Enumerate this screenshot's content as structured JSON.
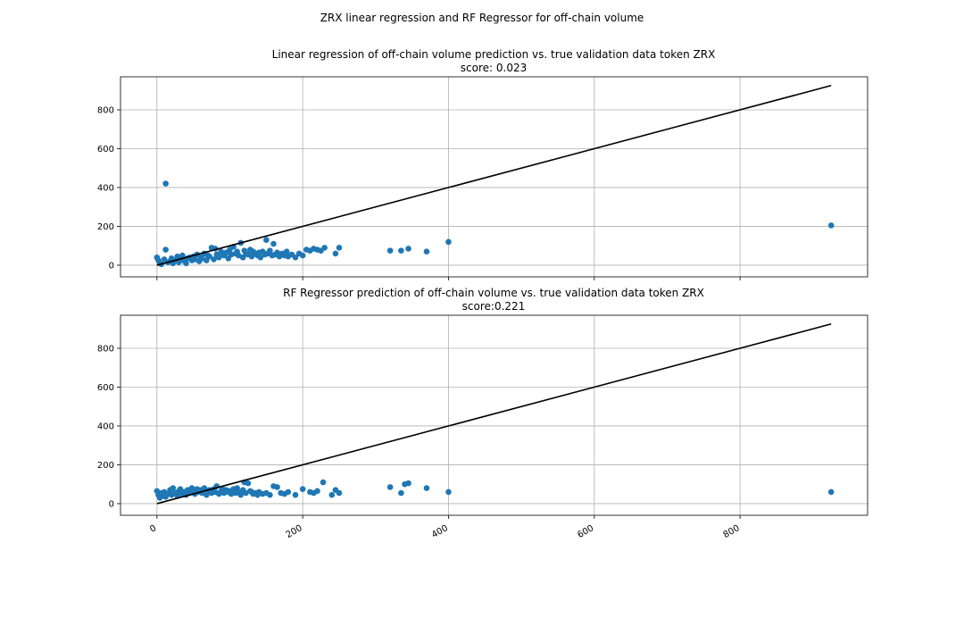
{
  "figure": {
    "suptitle": "ZRX linear regression and RF Regressor for off-chain volume"
  },
  "colors": {
    "points": "#1f77b4",
    "reference_line": "#000000",
    "grid": "#b0b0b0"
  },
  "chart_data": [
    {
      "type": "scatter",
      "title": "Linear regression of off-chain volume prediction vs. true validation data token ZRX",
      "subtitle": "score: 0.023",
      "xlim": [
        -50,
        975
      ],
      "ylim": [
        -60,
        970
      ],
      "xticks": [
        0,
        200,
        400,
        600,
        800
      ],
      "yticks": [
        0,
        200,
        400,
        600,
        800
      ],
      "xtick_labels_shown": false,
      "grid": true,
      "reference_line": {
        "x": [
          0,
          925
        ],
        "y": [
          0,
          925
        ]
      },
      "points": {
        "x": [
          0,
          2,
          4,
          6,
          10,
          12,
          15,
          18,
          20,
          22,
          25,
          28,
          30,
          32,
          35,
          38,
          40,
          42,
          45,
          48,
          50,
          52,
          55,
          58,
          60,
          62,
          65,
          68,
          70,
          72,
          75,
          78,
          80,
          82,
          85,
          88,
          90,
          92,
          95,
          98,
          100,
          102,
          105,
          108,
          110,
          112,
          115,
          118,
          120,
          122,
          125,
          128,
          130,
          132,
          135,
          138,
          140,
          142,
          145,
          148,
          150,
          152,
          155,
          158,
          160,
          162,
          165,
          168,
          170,
          172,
          175,
          178,
          180,
          185,
          190,
          195,
          200,
          205,
          210,
          215,
          220,
          225,
          230,
          245,
          250,
          320,
          335,
          345,
          370,
          400,
          925,
          12
        ],
        "y": [
          40,
          25,
          10,
          5,
          30,
          80,
          15,
          20,
          35,
          10,
          25,
          45,
          15,
          30,
          50,
          20,
          10,
          35,
          40,
          25,
          45,
          30,
          55,
          20,
          40,
          35,
          60,
          25,
          50,
          45,
          90,
          30,
          85,
          55,
          40,
          70,
          60,
          50,
          65,
          35,
          80,
          55,
          95,
          60,
          70,
          50,
          115,
          40,
          75,
          60,
          55,
          80,
          45,
          70,
          60,
          50,
          65,
          40,
          70,
          55,
          130,
          60,
          75,
          50,
          110,
          55,
          65,
          45,
          55,
          60,
          50,
          70,
          45,
          55,
          40,
          60,
          50,
          80,
          75,
          85,
          80,
          75,
          90,
          60,
          90,
          75,
          75,
          85,
          70,
          120,
          205,
          420
        ]
      }
    },
    {
      "type": "scatter",
      "title": "RF Regressor prediction of off-chain volume vs. true validation data token ZRX",
      "subtitle": "score:0.221",
      "xlim": [
        -50,
        975
      ],
      "ylim": [
        -60,
        970
      ],
      "xticks": [
        0,
        200,
        400,
        600,
        800
      ],
      "yticks": [
        0,
        200,
        400,
        600,
        800
      ],
      "xtick_labels": [
        "0",
        "200",
        "400",
        "600",
        "800"
      ],
      "grid": true,
      "reference_line": {
        "x": [
          0,
          925
        ],
        "y": [
          0,
          925
        ]
      },
      "points": {
        "x": [
          0,
          2,
          4,
          6,
          8,
          10,
          12,
          15,
          18,
          20,
          22,
          25,
          28,
          30,
          32,
          35,
          38,
          40,
          42,
          45,
          48,
          50,
          52,
          55,
          58,
          60,
          62,
          65,
          68,
          70,
          72,
          75,
          78,
          80,
          82,
          85,
          88,
          90,
          92,
          95,
          98,
          100,
          102,
          105,
          108,
          110,
          112,
          115,
          118,
          120,
          122,
          125,
          128,
          130,
          132,
          135,
          138,
          140,
          145,
          150,
          155,
          160,
          165,
          170,
          175,
          180,
          190,
          200,
          210,
          215,
          220,
          228,
          240,
          245,
          250,
          320,
          335,
          340,
          345,
          370,
          400,
          925
        ],
        "y": [
          65,
          45,
          30,
          55,
          40,
          60,
          35,
          50,
          70,
          45,
          80,
          55,
          40,
          65,
          75,
          50,
          60,
          45,
          70,
          55,
          80,
          65,
          50,
          75,
          60,
          70,
          55,
          80,
          45,
          65,
          70,
          55,
          75,
          60,
          90,
          50,
          65,
          75,
          55,
          70,
          60,
          65,
          50,
          75,
          55,
          80,
          60,
          45,
          70,
          110,
          55,
          105,
          65,
          60,
          50,
          55,
          45,
          60,
          50,
          55,
          45,
          90,
          85,
          55,
          50,
          60,
          45,
          75,
          60,
          55,
          65,
          110,
          45,
          70,
          55,
          85,
          55,
          100,
          105,
          80,
          60,
          60
        ]
      }
    }
  ]
}
